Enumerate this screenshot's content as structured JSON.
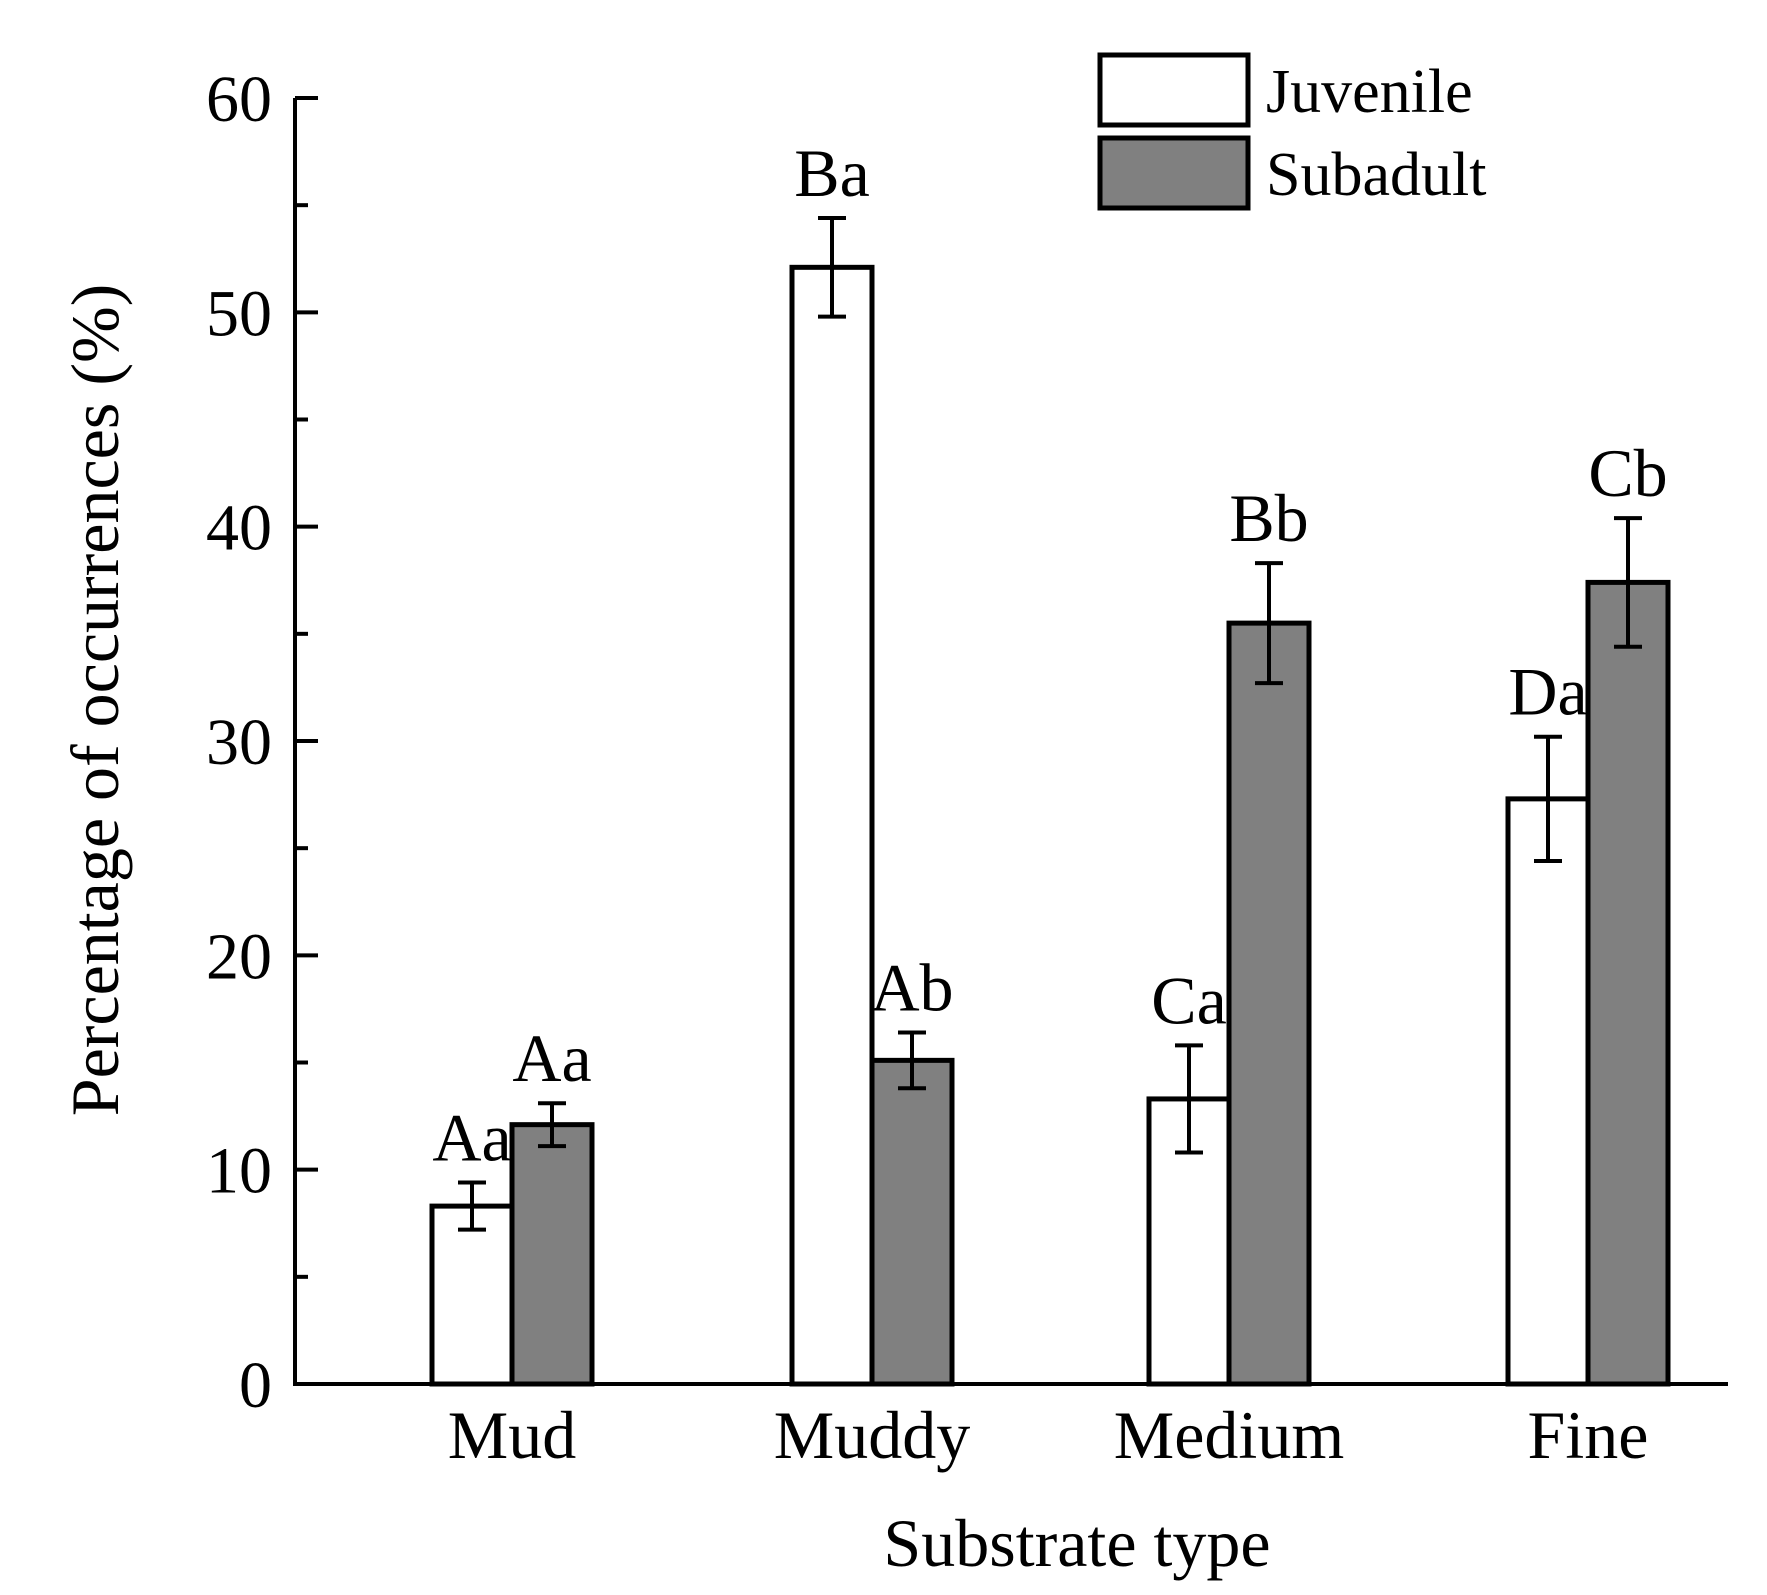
{
  "chart_data": {
    "type": "bar",
    "title": "",
    "xlabel": "Substrate type",
    "ylabel": "Percentage of occurrences (%)",
    "ylim": [
      0,
      60
    ],
    "yticks": [
      0,
      10,
      20,
      30,
      40,
      50,
      60
    ],
    "categories": [
      "Mud",
      "Muddy",
      "Medium",
      "Fine"
    ],
    "legend_position": "top-right",
    "series": [
      {
        "name": "Juvenile",
        "color": "#ffffff",
        "values": [
          8.3,
          52.1,
          13.3,
          27.3
        ],
        "errors": [
          1.1,
          2.3,
          2.5,
          2.9
        ],
        "labels": [
          "Aa",
          "Ba",
          "Ca",
          "Da"
        ]
      },
      {
        "name": "Subadult",
        "color": "#808080",
        "values": [
          12.1,
          15.1,
          35.5,
          37.4
        ],
        "errors": [
          1.0,
          1.3,
          2.8,
          3.0
        ],
        "labels": [
          "Aa",
          "Ab",
          "Bb",
          "Cb"
        ]
      }
    ]
  }
}
